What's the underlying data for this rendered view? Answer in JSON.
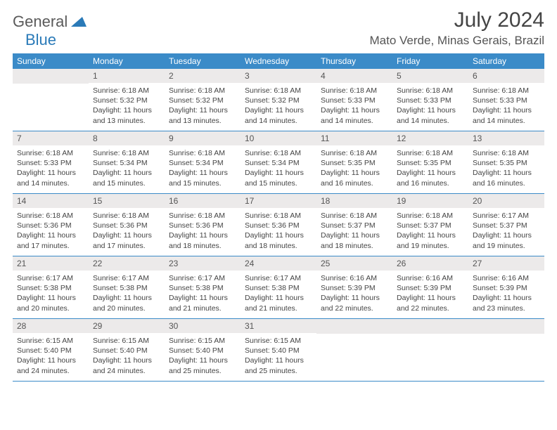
{
  "brand": {
    "general": "General",
    "blue": "Blue"
  },
  "title": "July 2024",
  "location": "Mato Verde, Minas Gerais, Brazil",
  "colors": {
    "header_bar": "#3b8bc8",
    "day_number_bg": "#eceaea",
    "text": "#444444",
    "logo_gray": "#5a5a5a",
    "logo_blue": "#2a7ab8"
  },
  "weekdays": [
    "Sunday",
    "Monday",
    "Tuesday",
    "Wednesday",
    "Thursday",
    "Friday",
    "Saturday"
  ],
  "weeks": [
    [
      null,
      {
        "n": "1",
        "sr": "Sunrise: 6:18 AM",
        "ss": "Sunset: 5:32 PM",
        "dl": "Daylight: 11 hours and 13 minutes."
      },
      {
        "n": "2",
        "sr": "Sunrise: 6:18 AM",
        "ss": "Sunset: 5:32 PM",
        "dl": "Daylight: 11 hours and 13 minutes."
      },
      {
        "n": "3",
        "sr": "Sunrise: 6:18 AM",
        "ss": "Sunset: 5:32 PM",
        "dl": "Daylight: 11 hours and 14 minutes."
      },
      {
        "n": "4",
        "sr": "Sunrise: 6:18 AM",
        "ss": "Sunset: 5:33 PM",
        "dl": "Daylight: 11 hours and 14 minutes."
      },
      {
        "n": "5",
        "sr": "Sunrise: 6:18 AM",
        "ss": "Sunset: 5:33 PM",
        "dl": "Daylight: 11 hours and 14 minutes."
      },
      {
        "n": "6",
        "sr": "Sunrise: 6:18 AM",
        "ss": "Sunset: 5:33 PM",
        "dl": "Daylight: 11 hours and 14 minutes."
      }
    ],
    [
      {
        "n": "7",
        "sr": "Sunrise: 6:18 AM",
        "ss": "Sunset: 5:33 PM",
        "dl": "Daylight: 11 hours and 14 minutes."
      },
      {
        "n": "8",
        "sr": "Sunrise: 6:18 AM",
        "ss": "Sunset: 5:34 PM",
        "dl": "Daylight: 11 hours and 15 minutes."
      },
      {
        "n": "9",
        "sr": "Sunrise: 6:18 AM",
        "ss": "Sunset: 5:34 PM",
        "dl": "Daylight: 11 hours and 15 minutes."
      },
      {
        "n": "10",
        "sr": "Sunrise: 6:18 AM",
        "ss": "Sunset: 5:34 PM",
        "dl": "Daylight: 11 hours and 15 minutes."
      },
      {
        "n": "11",
        "sr": "Sunrise: 6:18 AM",
        "ss": "Sunset: 5:35 PM",
        "dl": "Daylight: 11 hours and 16 minutes."
      },
      {
        "n": "12",
        "sr": "Sunrise: 6:18 AM",
        "ss": "Sunset: 5:35 PM",
        "dl": "Daylight: 11 hours and 16 minutes."
      },
      {
        "n": "13",
        "sr": "Sunrise: 6:18 AM",
        "ss": "Sunset: 5:35 PM",
        "dl": "Daylight: 11 hours and 16 minutes."
      }
    ],
    [
      {
        "n": "14",
        "sr": "Sunrise: 6:18 AM",
        "ss": "Sunset: 5:36 PM",
        "dl": "Daylight: 11 hours and 17 minutes."
      },
      {
        "n": "15",
        "sr": "Sunrise: 6:18 AM",
        "ss": "Sunset: 5:36 PM",
        "dl": "Daylight: 11 hours and 17 minutes."
      },
      {
        "n": "16",
        "sr": "Sunrise: 6:18 AM",
        "ss": "Sunset: 5:36 PM",
        "dl": "Daylight: 11 hours and 18 minutes."
      },
      {
        "n": "17",
        "sr": "Sunrise: 6:18 AM",
        "ss": "Sunset: 5:36 PM",
        "dl": "Daylight: 11 hours and 18 minutes."
      },
      {
        "n": "18",
        "sr": "Sunrise: 6:18 AM",
        "ss": "Sunset: 5:37 PM",
        "dl": "Daylight: 11 hours and 18 minutes."
      },
      {
        "n": "19",
        "sr": "Sunrise: 6:18 AM",
        "ss": "Sunset: 5:37 PM",
        "dl": "Daylight: 11 hours and 19 minutes."
      },
      {
        "n": "20",
        "sr": "Sunrise: 6:17 AM",
        "ss": "Sunset: 5:37 PM",
        "dl": "Daylight: 11 hours and 19 minutes."
      }
    ],
    [
      {
        "n": "21",
        "sr": "Sunrise: 6:17 AM",
        "ss": "Sunset: 5:38 PM",
        "dl": "Daylight: 11 hours and 20 minutes."
      },
      {
        "n": "22",
        "sr": "Sunrise: 6:17 AM",
        "ss": "Sunset: 5:38 PM",
        "dl": "Daylight: 11 hours and 20 minutes."
      },
      {
        "n": "23",
        "sr": "Sunrise: 6:17 AM",
        "ss": "Sunset: 5:38 PM",
        "dl": "Daylight: 11 hours and 21 minutes."
      },
      {
        "n": "24",
        "sr": "Sunrise: 6:17 AM",
        "ss": "Sunset: 5:38 PM",
        "dl": "Daylight: 11 hours and 21 minutes."
      },
      {
        "n": "25",
        "sr": "Sunrise: 6:16 AM",
        "ss": "Sunset: 5:39 PM",
        "dl": "Daylight: 11 hours and 22 minutes."
      },
      {
        "n": "26",
        "sr": "Sunrise: 6:16 AM",
        "ss": "Sunset: 5:39 PM",
        "dl": "Daylight: 11 hours and 22 minutes."
      },
      {
        "n": "27",
        "sr": "Sunrise: 6:16 AM",
        "ss": "Sunset: 5:39 PM",
        "dl": "Daylight: 11 hours and 23 minutes."
      }
    ],
    [
      {
        "n": "28",
        "sr": "Sunrise: 6:15 AM",
        "ss": "Sunset: 5:40 PM",
        "dl": "Daylight: 11 hours and 24 minutes."
      },
      {
        "n": "29",
        "sr": "Sunrise: 6:15 AM",
        "ss": "Sunset: 5:40 PM",
        "dl": "Daylight: 11 hours and 24 minutes."
      },
      {
        "n": "30",
        "sr": "Sunrise: 6:15 AM",
        "ss": "Sunset: 5:40 PM",
        "dl": "Daylight: 11 hours and 25 minutes."
      },
      {
        "n": "31",
        "sr": "Sunrise: 6:15 AM",
        "ss": "Sunset: 5:40 PM",
        "dl": "Daylight: 11 hours and 25 minutes."
      },
      null,
      null,
      null
    ]
  ]
}
